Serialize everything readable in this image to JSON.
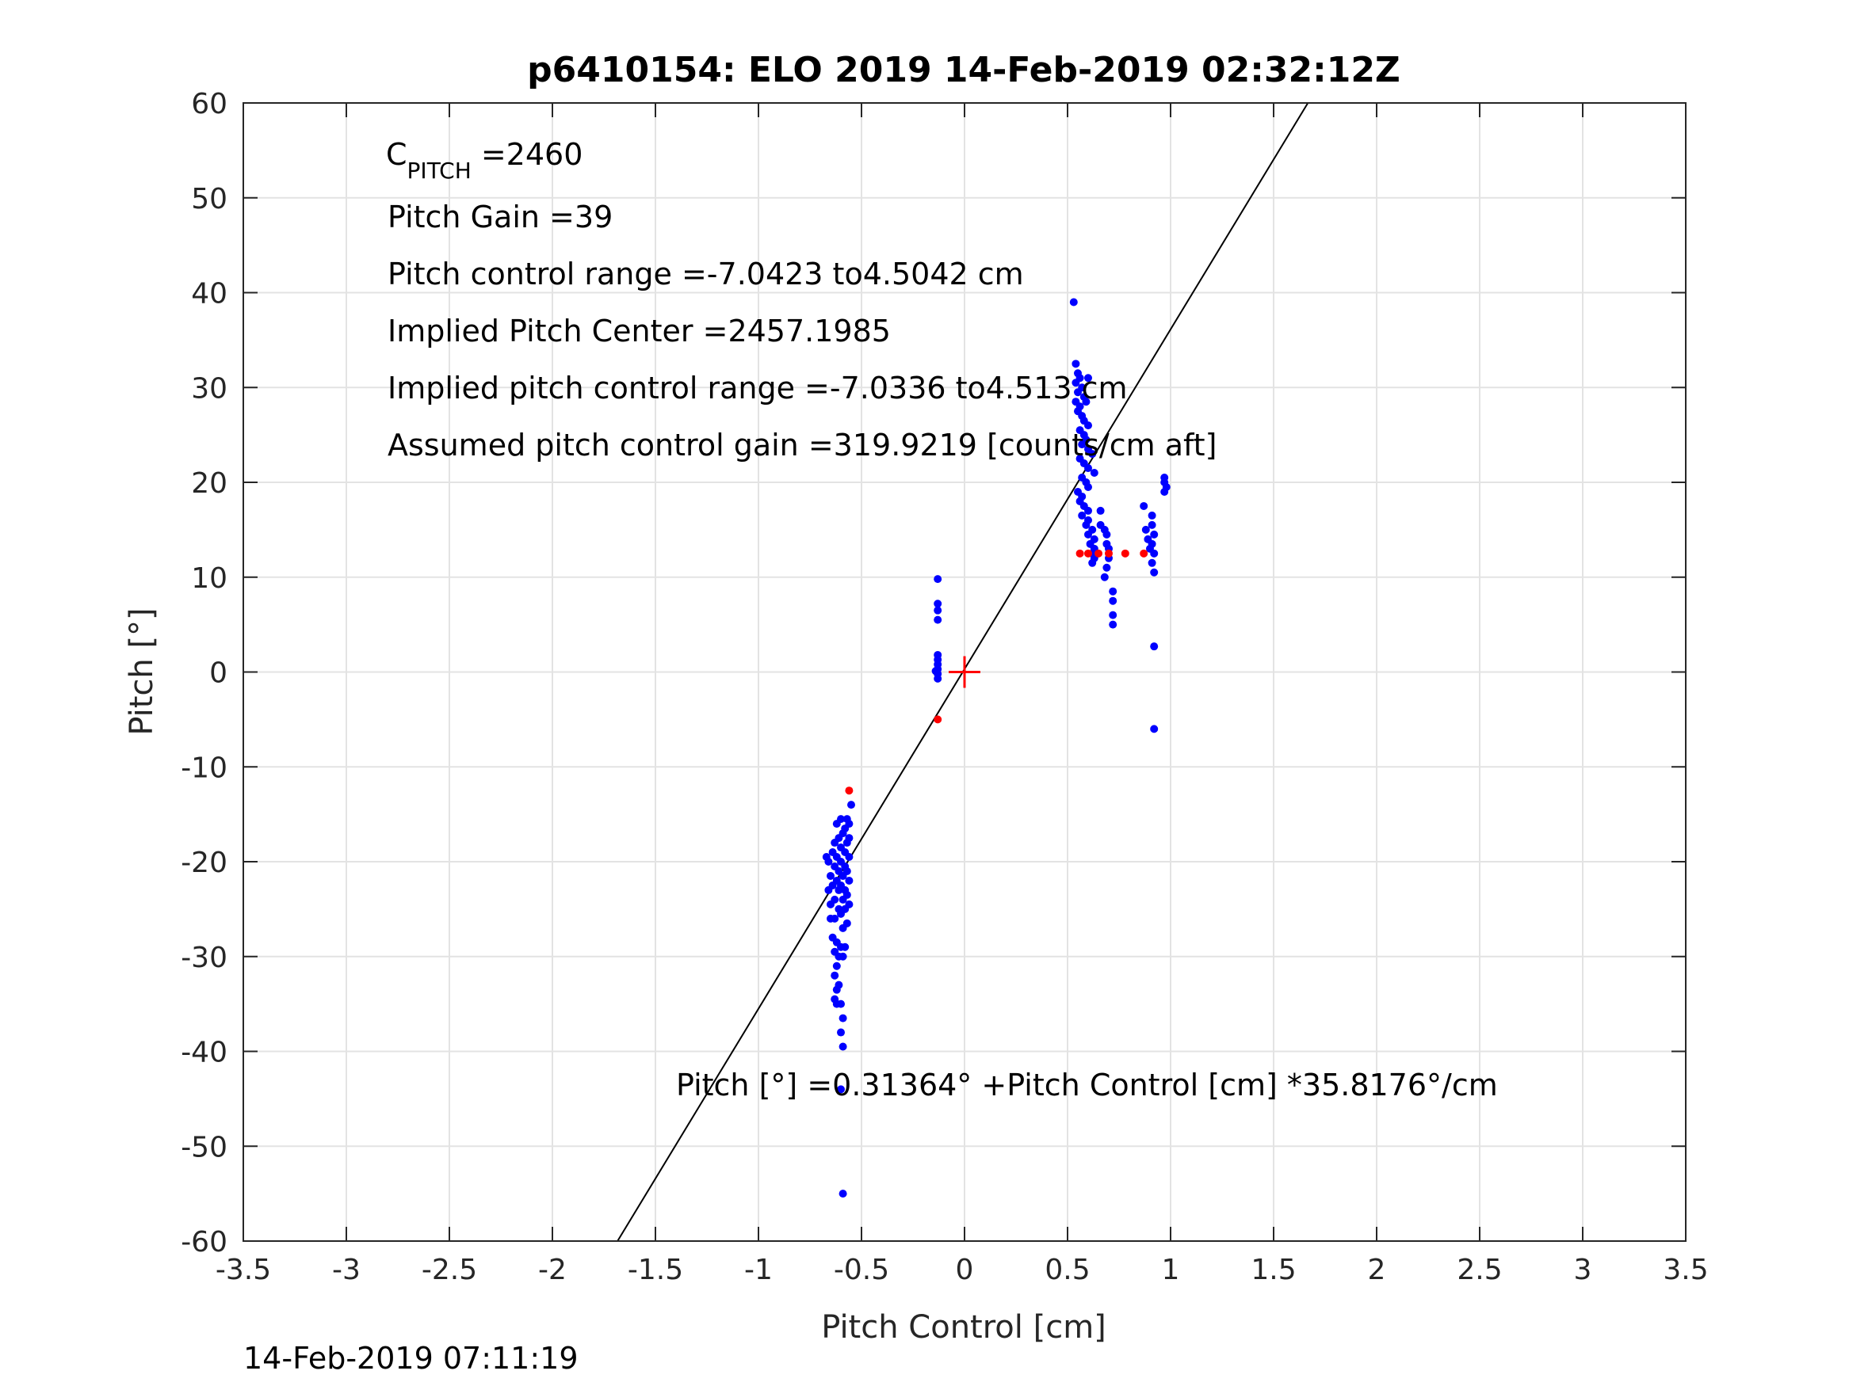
{
  "chart_data": {
    "type": "scatter",
    "title": "p6410154: ELO 2019 14-Feb-2019 02:32:12Z",
    "xlabel": "Pitch Control [cm]",
    "ylabel": "Pitch [°]",
    "xlim": [
      -3.5,
      3.5
    ],
    "ylim": [
      -60,
      60
    ],
    "xticks": [
      -3.5,
      -3,
      -2.5,
      -2,
      -1.5,
      -1,
      -0.5,
      0,
      0.5,
      1,
      1.5,
      2,
      2.5,
      3,
      3.5
    ],
    "xtick_labels": [
      "-3.5",
      "-3",
      "-2.5",
      "-2",
      "-1.5",
      "-1",
      "-0.5",
      "0",
      "0.5",
      "1",
      "1.5",
      "2",
      "2.5",
      "3",
      "3.5"
    ],
    "yticks": [
      -60,
      -50,
      -40,
      -30,
      -20,
      -10,
      0,
      10,
      20,
      30,
      40,
      50,
      60
    ],
    "ytick_labels": [
      "-60",
      "-50",
      "-40",
      "-30",
      "-20",
      "-10",
      "0",
      "10",
      "20",
      "30",
      "40",
      "50",
      "60"
    ],
    "grid": true,
    "annotations": {
      "cpitch_main": "C",
      "cpitch_sub": "PITCH",
      "cpitch_value": " =2460",
      "pitch_gain": "Pitch Gain =39",
      "control_range": "Pitch control range =-7.0423 to4.5042 cm",
      "implied_center": "Implied Pitch Center =2457.1985",
      "implied_range": "Implied pitch control range =-7.0336 to4.513 cm",
      "assumed_gain": "Assumed pitch control gain =319.9219 [counts/cm aft]",
      "fit_equation": "Pitch [°] =0.31364° +Pitch Control [cm] *35.8176°/cm"
    },
    "fit_line": {
      "intercept": 0.31364,
      "slope": 35.8176,
      "color": "#000000"
    },
    "center_marker": {
      "x": 0,
      "y": 0,
      "color": "#ff0000"
    },
    "series": [
      {
        "color": "#0000ff",
        "points": [
          [
            -0.55,
            -14
          ],
          [
            -0.57,
            -15.5
          ],
          [
            -0.6,
            -15.5
          ],
          [
            -0.56,
            -16
          ],
          [
            -0.58,
            -16.5
          ],
          [
            -0.62,
            -16
          ],
          [
            -0.59,
            -17
          ],
          [
            -0.56,
            -17.5
          ],
          [
            -0.61,
            -17.5
          ],
          [
            -0.63,
            -18
          ],
          [
            -0.57,
            -18
          ],
          [
            -0.6,
            -18.5
          ],
          [
            -0.58,
            -19
          ],
          [
            -0.64,
            -19
          ],
          [
            -0.56,
            -19.5
          ],
          [
            -0.62,
            -19.5
          ],
          [
            -0.66,
            -20
          ],
          [
            -0.6,
            -20
          ],
          [
            -0.58,
            -20.5
          ],
          [
            -0.63,
            -20.5
          ],
          [
            -0.57,
            -21
          ],
          [
            -0.61,
            -21
          ],
          [
            -0.65,
            -21.5
          ],
          [
            -0.59,
            -21.5
          ],
          [
            -0.56,
            -22
          ],
          [
            -0.62,
            -22
          ],
          [
            -0.6,
            -22.5
          ],
          [
            -0.64,
            -22.5
          ],
          [
            -0.58,
            -23
          ],
          [
            -0.61,
            -23
          ],
          [
            -0.57,
            -23.5
          ],
          [
            -0.63,
            -24
          ],
          [
            -0.59,
            -24
          ],
          [
            -0.56,
            -24.5
          ],
          [
            -0.61,
            -25
          ],
          [
            -0.58,
            -25
          ],
          [
            -0.63,
            -26
          ],
          [
            -0.57,
            -26.5
          ],
          [
            -0.6,
            -25.5
          ],
          [
            -0.59,
            -27
          ],
          [
            -0.65,
            -26
          ],
          [
            -0.64,
            -28
          ],
          [
            -0.62,
            -28.5
          ],
          [
            -0.6,
            -29
          ],
          [
            -0.58,
            -29
          ],
          [
            -0.63,
            -29.5
          ],
          [
            -0.61,
            -30
          ],
          [
            -0.59,
            -30
          ],
          [
            -0.62,
            -31
          ],
          [
            -0.63,
            -32
          ],
          [
            -0.61,
            -33
          ],
          [
            -0.62,
            -33.5
          ],
          [
            -0.63,
            -34.5
          ],
          [
            -0.6,
            -35
          ],
          [
            -0.62,
            -35
          ],
          [
            -0.59,
            -36.5
          ],
          [
            -0.6,
            -38
          ],
          [
            -0.59,
            -39.5
          ],
          [
            -0.6,
            -44
          ],
          [
            -0.59,
            -55
          ],
          [
            -0.67,
            -19.5
          ],
          [
            -0.66,
            -23
          ],
          [
            -0.65,
            -24.5
          ],
          [
            -0.13,
            9.8
          ],
          [
            -0.13,
            7.2
          ],
          [
            -0.13,
            6.5
          ],
          [
            -0.13,
            5.5
          ],
          [
            -0.13,
            1.8
          ],
          [
            -0.13,
            1.3
          ],
          [
            -0.13,
            0.8
          ],
          [
            -0.13,
            0.3
          ],
          [
            -0.13,
            -0.2
          ],
          [
            -0.13,
            -0.7
          ],
          [
            -0.14,
            0.1
          ],
          [
            0.53,
            39
          ],
          [
            0.54,
            32.5
          ],
          [
            0.55,
            31.5
          ],
          [
            0.56,
            31
          ],
          [
            0.54,
            30.5
          ],
          [
            0.57,
            30
          ],
          [
            0.6,
            31
          ],
          [
            0.55,
            29.5
          ],
          [
            0.58,
            29
          ],
          [
            0.54,
            28.5
          ],
          [
            0.56,
            28
          ],
          [
            0.59,
            28.5
          ],
          [
            0.55,
            27.5
          ],
          [
            0.57,
            27
          ],
          [
            0.58,
            26.5
          ],
          [
            0.6,
            26
          ],
          [
            0.56,
            25.5
          ],
          [
            0.58,
            25
          ],
          [
            0.59,
            24.5
          ],
          [
            0.57,
            24
          ],
          [
            0.6,
            23.5
          ],
          [
            0.62,
            23
          ],
          [
            0.56,
            22.5
          ],
          [
            0.58,
            22
          ],
          [
            0.6,
            21.5
          ],
          [
            0.63,
            21
          ],
          [
            0.57,
            20.5
          ],
          [
            0.59,
            20
          ],
          [
            0.6,
            19.5
          ],
          [
            0.55,
            19
          ],
          [
            0.57,
            18.5
          ],
          [
            0.56,
            18
          ],
          [
            0.58,
            17.5
          ],
          [
            0.6,
            17
          ],
          [
            0.57,
            16.5
          ],
          [
            0.6,
            16
          ],
          [
            0.59,
            15.5
          ],
          [
            0.62,
            15
          ],
          [
            0.6,
            14.5
          ],
          [
            0.63,
            14
          ],
          [
            0.61,
            13.5
          ],
          [
            0.63,
            13
          ],
          [
            0.62,
            12.5
          ],
          [
            0.63,
            12
          ],
          [
            0.62,
            11.5
          ],
          [
            0.66,
            17
          ],
          [
            0.66,
            15.5
          ],
          [
            0.68,
            15
          ],
          [
            0.69,
            14.5
          ],
          [
            0.69,
            13.5
          ],
          [
            0.7,
            13
          ],
          [
            0.7,
            12
          ],
          [
            0.69,
            11
          ],
          [
            0.68,
            10
          ],
          [
            0.72,
            8.5
          ],
          [
            0.72,
            7.5
          ],
          [
            0.72,
            6
          ],
          [
            0.72,
            5
          ],
          [
            0.87,
            17.5
          ],
          [
            0.88,
            15
          ],
          [
            0.89,
            14
          ],
          [
            0.9,
            13
          ],
          [
            0.91,
            16.5
          ],
          [
            0.91,
            15.5
          ],
          [
            0.92,
            14.5
          ],
          [
            0.91,
            13.5
          ],
          [
            0.92,
            12.5
          ],
          [
            0.91,
            11.5
          ],
          [
            0.92,
            10.5
          ],
          [
            0.92,
            2.7
          ],
          [
            0.92,
            -6
          ],
          [
            0.97,
            20.5
          ],
          [
            0.97,
            20
          ],
          [
            0.98,
            19.5
          ],
          [
            0.97,
            19
          ]
        ]
      },
      {
        "color": "#ff0000",
        "points": [
          [
            -0.56,
            -12.5
          ],
          [
            -0.13,
            -5
          ],
          [
            0.56,
            12.5
          ],
          [
            0.6,
            12.5
          ],
          [
            0.65,
            12.5
          ],
          [
            0.7,
            12.5
          ],
          [
            0.78,
            12.5
          ],
          [
            0.87,
            12.5
          ]
        ]
      }
    ]
  },
  "footer_timestamp": "14-Feb-2019 07:11:19"
}
